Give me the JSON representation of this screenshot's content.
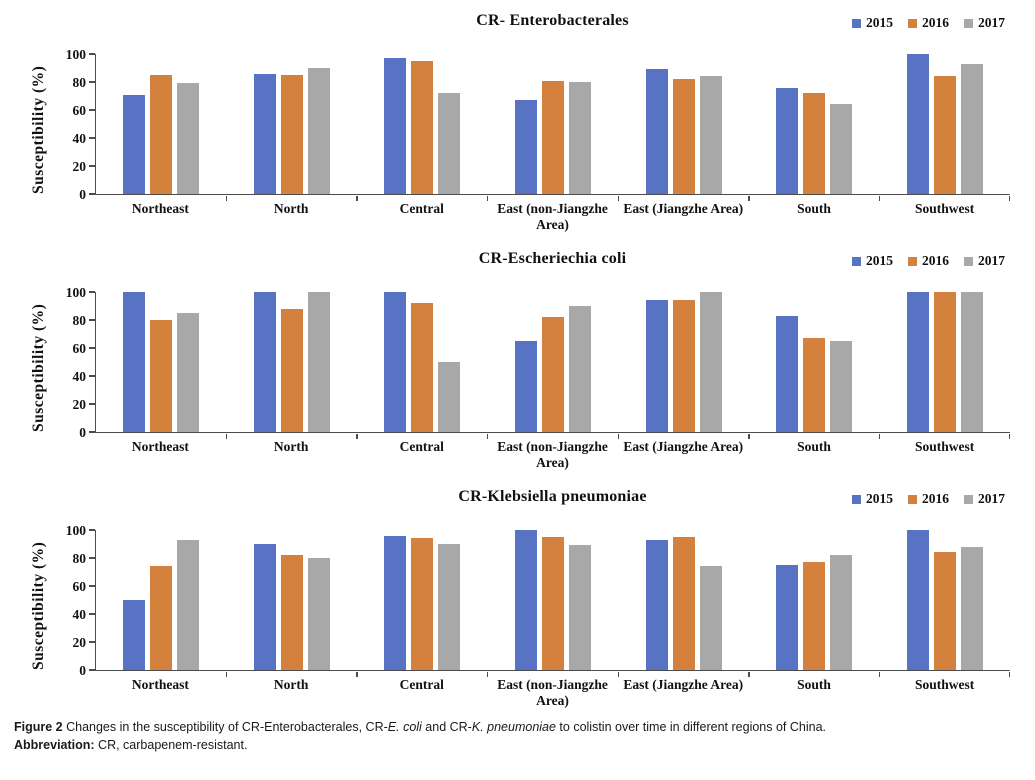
{
  "figure": {
    "caption_line1": [
      {
        "text": "Figure 2 ",
        "bold": true,
        "italic": false
      },
      {
        "text": "Changes in the susceptibility of CR-Enterobacterales, CR-",
        "bold": false,
        "italic": false
      },
      {
        "text": "E. coli",
        "bold": false,
        "italic": true
      },
      {
        "text": " and CR-",
        "bold": false,
        "italic": false
      },
      {
        "text": "K. pneumoniae",
        "bold": false,
        "italic": true
      },
      {
        "text": " to colistin over time in different regions of China.",
        "bold": false,
        "italic": false
      }
    ],
    "caption_line2": [
      {
        "text": "Abbreviation: ",
        "bold": true,
        "italic": false
      },
      {
        "text": "CR, carbapenem-resistant.",
        "bold": false,
        "italic": false
      }
    ]
  },
  "chart_data": [
    {
      "type": "bar",
      "title": "CR- Enterobacterales",
      "ylabel": "Susceptibility (%)",
      "ylim": [
        0,
        100
      ],
      "yticks": [
        0,
        20,
        40,
        60,
        80,
        100
      ],
      "grid": false,
      "legend_position": "top-right",
      "categories": [
        "Northeast",
        "North",
        "Central",
        "East (non-Jiangzhe Area)",
        "East (Jiangzhe Area)",
        "South",
        "Southwest"
      ],
      "series": [
        {
          "name": "2015",
          "color": "#5872C4",
          "values": [
            71,
            86,
            97,
            67,
            89,
            76,
            100
          ]
        },
        {
          "name": "2016",
          "color": "#D3813C",
          "values": [
            85,
            85,
            95,
            81,
            82,
            72,
            84
          ]
        },
        {
          "name": "2017",
          "color": "#A8A8A8",
          "values": [
            79,
            90,
            72,
            80,
            84,
            64,
            93
          ]
        }
      ]
    },
    {
      "type": "bar",
      "title": "CR-Escheriechia coli",
      "ylabel": "Susceptibility (%)",
      "ylim": [
        0,
        100
      ],
      "yticks": [
        0,
        20,
        40,
        60,
        80,
        100
      ],
      "grid": false,
      "legend_position": "top-right",
      "categories": [
        "Northeast",
        "North",
        "Central",
        "East (non-Jiangzhe Area)",
        "East (Jiangzhe Area)",
        "South",
        "Southwest"
      ],
      "series": [
        {
          "name": "2015",
          "color": "#5872C4",
          "values": [
            100,
            100,
            100,
            65,
            94,
            83,
            100
          ]
        },
        {
          "name": "2016",
          "color": "#D3813C",
          "values": [
            80,
            88,
            92,
            82,
            94,
            67,
            100
          ]
        },
        {
          "name": "2017",
          "color": "#A8A8A8",
          "values": [
            85,
            100,
            50,
            90,
            100,
            65,
            100
          ]
        }
      ]
    },
    {
      "type": "bar",
      "title": "CR-Klebsiella pneumoniae",
      "ylabel": "Susceptibility (%)",
      "ylim": [
        0,
        100
      ],
      "yticks": [
        0,
        20,
        40,
        60,
        80,
        100
      ],
      "grid": false,
      "legend_position": "top-right",
      "categories": [
        "Northeast",
        "North",
        "Central",
        "East (non-Jiangzhe Area)",
        "East (Jiangzhe Area)",
        "South",
        "Southwest"
      ],
      "series": [
        {
          "name": "2015",
          "color": "#5872C4",
          "values": [
            50,
            90,
            96,
            100,
            93,
            75,
            100
          ]
        },
        {
          "name": "2016",
          "color": "#D3813C",
          "values": [
            74,
            82,
            94,
            95,
            95,
            77,
            84
          ]
        },
        {
          "name": "2017",
          "color": "#A8A8A8",
          "values": [
            93,
            80,
            90,
            89,
            74,
            82,
            88
          ]
        }
      ]
    }
  ]
}
